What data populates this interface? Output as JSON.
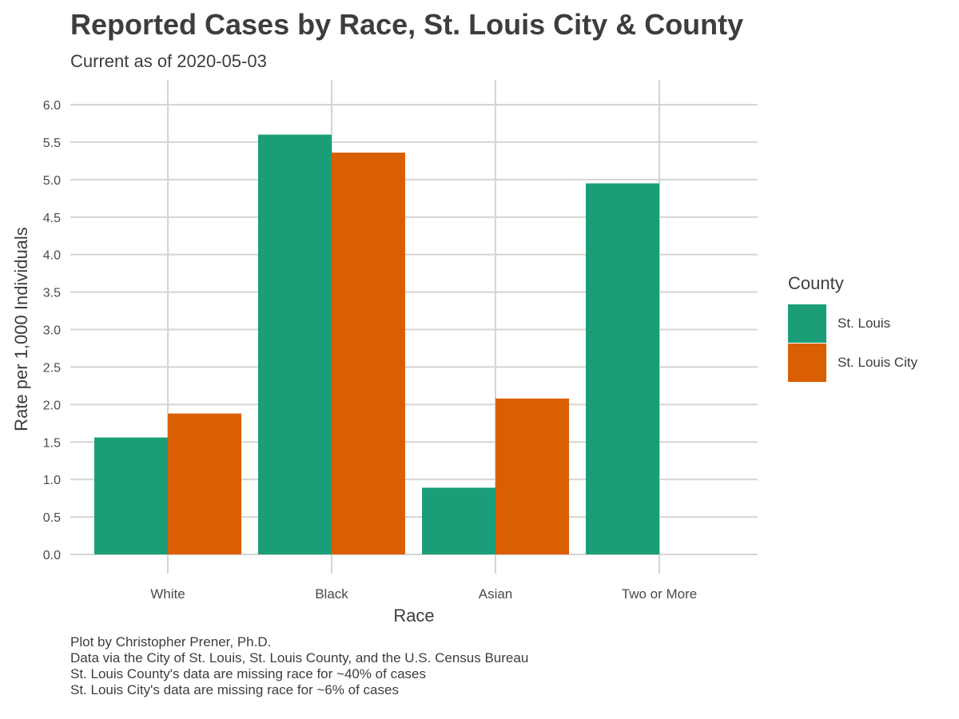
{
  "chart_data": {
    "type": "bar",
    "title": "Reported Cases by Race, St. Louis City & County",
    "subtitle": "Current as of 2020-05-03",
    "xlabel": "Race",
    "ylabel": "Rate per 1,000 Individuals",
    "categories": [
      "White",
      "Black",
      "Asian",
      "Two or More"
    ],
    "series": [
      {
        "name": "St. Louis",
        "color": "#1b9e77",
        "values": [
          1.56,
          5.6,
          0.89,
          4.95
        ]
      },
      {
        "name": "St. Louis City",
        "color": "#d95f02",
        "values": [
          1.88,
          5.36,
          2.08,
          null
        ]
      }
    ],
    "ylim": [
      0,
      6
    ],
    "yticks": [
      "0.0",
      "0.5",
      "1.0",
      "1.5",
      "2.0",
      "2.5",
      "3.0",
      "3.5",
      "4.0",
      "4.5",
      "5.0",
      "5.5",
      "6.0"
    ],
    "grid": true,
    "legend": {
      "title": "County",
      "placement": "right"
    },
    "caption": [
      "Plot by Christopher Prener, Ph.D.",
      "Data via the City of St. Louis, St. Louis County, and the U.S. Census Bureau",
      "St. Louis County's data are missing race for ~40% of cases",
      "St. Louis City's data are missing race for ~6% of cases"
    ]
  }
}
